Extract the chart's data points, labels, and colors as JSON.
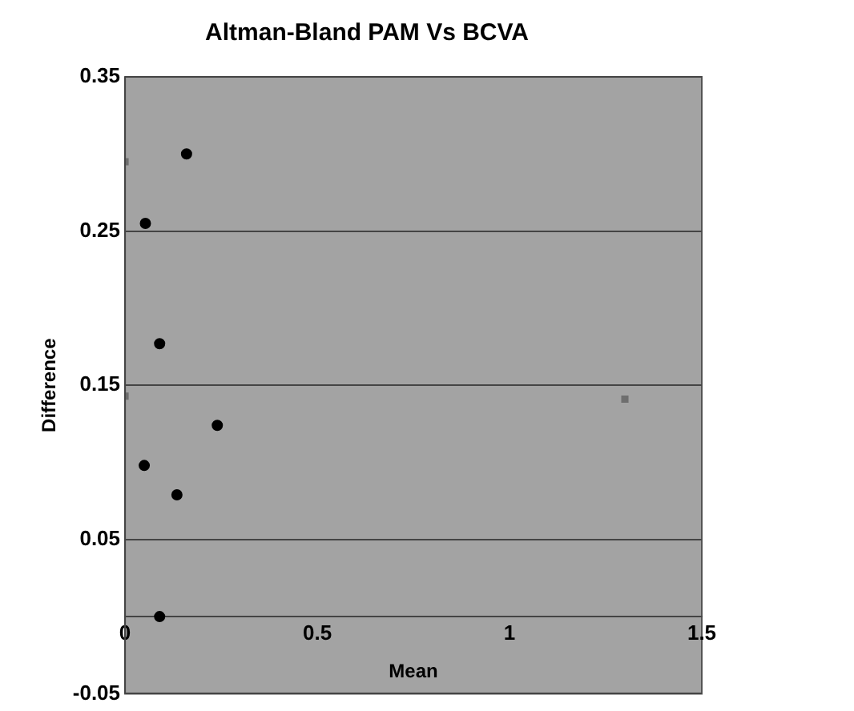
{
  "chart_data": {
    "type": "scatter",
    "title": "Altman-Bland PAM Vs BCVA",
    "xlabel": "Mean",
    "ylabel": "Difference",
    "xlim": [
      0,
      1.5
    ],
    "xticks": [
      0,
      0.5,
      1,
      1.5
    ],
    "ylim": [
      -0.05,
      0.35
    ],
    "yticks": [
      -0.05,
      0.05,
      0.15,
      0.25,
      0.35
    ],
    "grid": "y",
    "legend": false,
    "series": [
      {
        "color": "#000000",
        "marker": "circle",
        "x": [
          0.16,
          0.053,
          0.09,
          0.24,
          0.05,
          0.135,
          0.09
        ],
        "values": [
          0.3,
          0.255,
          0.177,
          0.124,
          0.098,
          0.079,
          0.0
        ]
      },
      {
        "color": "#6e6e6e",
        "marker": "square",
        "x": [
          0,
          0,
          1.3
        ],
        "values": [
          0.295,
          0.143,
          0.141
        ]
      }
    ]
  }
}
